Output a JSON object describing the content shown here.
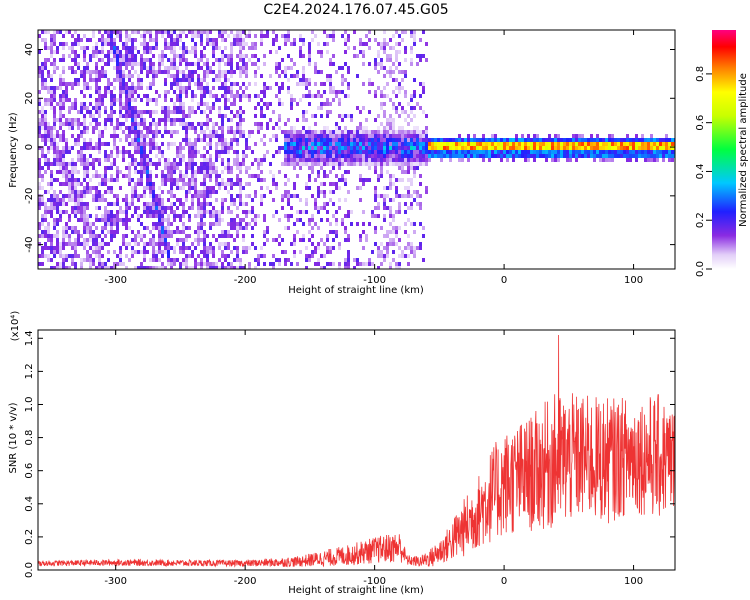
{
  "title": "C2E4.2024.176.07.45.G05",
  "chart_data": [
    {
      "type": "heatmap",
      "xlabel": "Height of straight line (km)",
      "ylabel": "Frequency (Hz)",
      "xlim": [
        -360,
        132
      ],
      "ylim": [
        -50,
        48
      ],
      "x_ticks": [
        -300,
        -200,
        -100,
        0,
        100
      ],
      "x_tick_labels": [
        "-300",
        "-200",
        "-100",
        "0",
        "100"
      ],
      "y_ticks": [
        -40,
        -20,
        0,
        20,
        40
      ],
      "y_tick_labels": [
        "-40",
        "-20",
        "0",
        "20",
        "40"
      ],
      "colorbar": {
        "label": "Normalized spectral amplitude",
        "range": [
          0,
          0.98
        ],
        "ticks": [
          0.0,
          0.2,
          0.4,
          0.6,
          0.8
        ],
        "tick_labels": [
          "0.0",
          "0.2",
          "0.4",
          "0.6",
          "0.8"
        ]
      },
      "features": {
        "carrier_line": {
          "frequency_hz": 0,
          "x_start": -60,
          "x_end": 132,
          "amplitude": 0.85
        },
        "scattered_band": {
          "x_start": -170,
          "x_end": -60,
          "freq_halfwidth_hz": 6,
          "amplitude": 0.3
        },
        "diagonal_streaks": [
          {
            "x_start": -305,
            "f_start": 48,
            "x_end": -262,
            "f_end": -38,
            "amplitude": 0.28
          },
          {
            "x_start": -255,
            "f_start": 36,
            "x_end": -228,
            "f_end": -50,
            "amplitude": 0.2
          },
          {
            "x_start": -355,
            "f_start": 10,
            "x_end": -315,
            "f_end": -40,
            "amplitude": 0.14
          }
        ],
        "noise_region_x_end": -60
      },
      "grid": false,
      "legend": "colorbar-right"
    },
    {
      "type": "line",
      "xlabel": "Height of straight line (km)",
      "ylabel": "SNR (10 * v/v)",
      "y_scale_note": "(x10⁴)",
      "xlim": [
        -360,
        132
      ],
      "ylim": [
        0,
        1.45
      ],
      "x_ticks": [
        -300,
        -200,
        -100,
        0,
        100
      ],
      "x_tick_labels": [
        "-300",
        "-200",
        "-100",
        "0",
        "100"
      ],
      "y_ticks": [
        0.0,
        0.2,
        0.4,
        0.6,
        0.8,
        1.0,
        1.2,
        1.4
      ],
      "y_tick_labels": [
        "0.0",
        "0.2",
        "0.4",
        "0.6",
        "0.8",
        "1.0",
        "1.2",
        "1.4"
      ],
      "color": "#ee3333",
      "envelope": {
        "x": [
          -360,
          -300,
          -200,
          -160,
          -140,
          -120,
          -100,
          -80,
          -75,
          -65,
          -55,
          -45,
          -35,
          -20,
          -10,
          0,
          20,
          40,
          60,
          80,
          100,
          120,
          132
        ],
        "mean": [
          0.04,
          0.045,
          0.04,
          0.05,
          0.07,
          0.09,
          0.12,
          0.14,
          0.06,
          0.05,
          0.08,
          0.14,
          0.22,
          0.35,
          0.45,
          0.52,
          0.58,
          0.66,
          0.68,
          0.66,
          0.7,
          0.68,
          0.66
        ],
        "spread": [
          0.01,
          0.012,
          0.012,
          0.02,
          0.03,
          0.04,
          0.05,
          0.06,
          0.02,
          0.02,
          0.04,
          0.06,
          0.1,
          0.14,
          0.18,
          0.2,
          0.22,
          0.26,
          0.24,
          0.24,
          0.22,
          0.24,
          0.2
        ]
      },
      "peak": {
        "x": 42,
        "y": 1.42
      },
      "grid": false
    }
  ]
}
